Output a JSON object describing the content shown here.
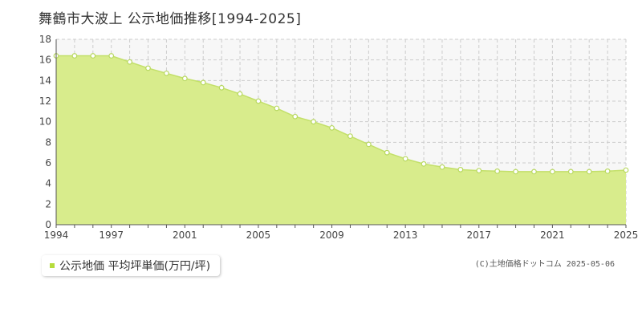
{
  "title": "舞鶴市大波上 公示地価推移[1994-2025]",
  "legend": {
    "label": "公示地価 平均坪単価(万円/坪)"
  },
  "credit": "(C)土地価格ドットコム 2025-05-06",
  "colors": {
    "area_fill": "#d8ec8c",
    "line": "#c3e06a",
    "marker_stroke": "#b8d860",
    "marker_fill": "#ffffff",
    "grid": "#cccccc",
    "plot_bg": "#f7f7f7",
    "legend_swatch": "#b6dc3c"
  },
  "chart_data": {
    "type": "area",
    "title": "舞鶴市大波上 公示地価推移[1994-2025]",
    "xlabel": "",
    "ylabel": "",
    "xlim": [
      1994,
      2025
    ],
    "ylim": [
      0,
      18
    ],
    "x_ticks": [
      1994,
      1997,
      2001,
      2005,
      2009,
      2013,
      2017,
      2021,
      2025
    ],
    "y_ticks": [
      0,
      2,
      4,
      6,
      8,
      10,
      12,
      14,
      16,
      18
    ],
    "grid": true,
    "legend_position": "bottom-left",
    "series": [
      {
        "name": "公示地価 平均坪単価(万円/坪)",
        "x": [
          1994,
          1995,
          1996,
          1997,
          1998,
          1999,
          2000,
          2001,
          2002,
          2003,
          2004,
          2005,
          2006,
          2007,
          2008,
          2009,
          2010,
          2011,
          2012,
          2013,
          2014,
          2015,
          2016,
          2017,
          2018,
          2019,
          2020,
          2021,
          2022,
          2023,
          2024,
          2025
        ],
        "values": [
          16.4,
          16.4,
          16.4,
          16.4,
          15.8,
          15.2,
          14.7,
          14.2,
          13.8,
          13.3,
          12.7,
          12.0,
          11.3,
          10.5,
          10.0,
          9.4,
          8.6,
          7.8,
          7.0,
          6.4,
          5.9,
          5.6,
          5.35,
          5.25,
          5.2,
          5.15,
          5.15,
          5.15,
          5.15,
          5.15,
          5.2,
          5.3
        ]
      }
    ]
  }
}
